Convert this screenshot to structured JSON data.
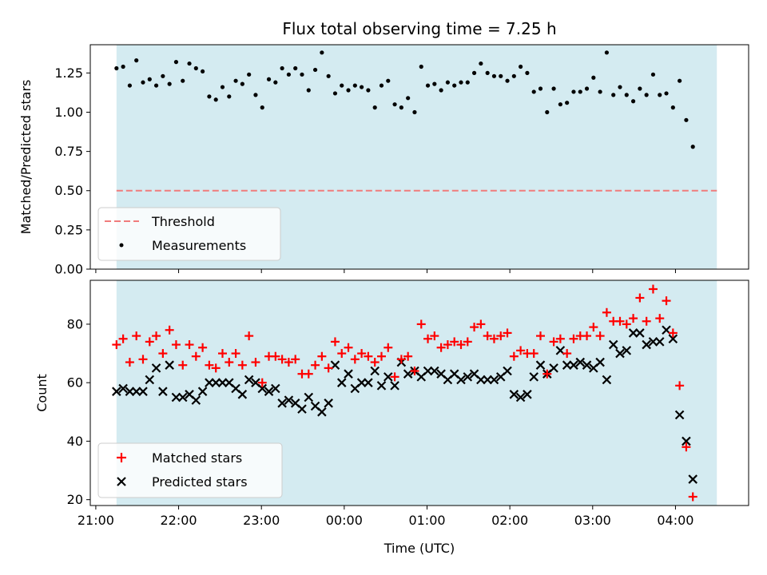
{
  "chart_data": [
    {
      "type": "scatter",
      "title": "Flux total observing time = 7.25 h",
      "xlabel": "",
      "ylabel": "Matched/Predicted stars",
      "xlim": [
        "20:56",
        "04:53"
      ],
      "ylim": [
        0.0,
        1.43
      ],
      "yticks": [
        "0.00",
        "0.25",
        "0.50",
        "0.75",
        "1.00",
        "1.25"
      ],
      "grid": false,
      "legend_position": "lower-left",
      "observing_window": [
        "21:15",
        "04:30"
      ],
      "colors": {
        "window": "#d4ebf1",
        "threshold": "#f07c7c",
        "measurements": "#000000"
      },
      "threshold": {
        "name": "Threshold",
        "value": 0.5
      },
      "series": [
        {
          "name": "Measurements",
          "marker": "dot",
          "start": "21:15",
          "step_minutes": 4.8,
          "values": [
            1.28,
            1.29,
            1.17,
            1.33,
            1.19,
            1.21,
            1.17,
            1.23,
            1.18,
            1.32,
            1.2,
            1.31,
            1.28,
            1.26,
            1.1,
            1.08,
            1.16,
            1.1,
            1.2,
            1.18,
            1.24,
            1.11,
            1.03,
            1.21,
            1.19,
            1.28,
            1.24,
            1.28,
            1.24,
            1.14,
            1.27,
            1.38,
            1.23,
            1.12,
            1.17,
            1.14,
            1.17,
            1.16,
            1.14,
            1.03,
            1.17,
            1.2,
            1.05,
            1.03,
            1.09,
            1.0,
            1.29,
            1.17,
            1.18,
            1.14,
            1.19,
            1.17,
            1.19,
            1.19,
            1.25,
            1.31,
            1.25,
            1.23,
            1.23,
            1.2,
            1.23,
            1.29,
            1.25,
            1.13,
            1.15,
            1.0,
            1.15,
            1.05,
            1.06,
            1.13,
            1.13,
            1.15,
            1.22,
            1.13,
            1.38,
            1.11,
            1.16,
            1.11,
            1.07,
            1.15,
            1.11,
            1.24,
            1.11,
            1.12,
            1.03,
            1.2,
            0.95,
            0.78
          ]
        }
      ]
    },
    {
      "type": "scatter",
      "xlabel": "Time (UTC)",
      "ylabel": "Count",
      "xlim": [
        "20:56",
        "04:53"
      ],
      "ylim": [
        18,
        95
      ],
      "xticks": [
        "21:00",
        "22:00",
        "23:00",
        "00:00",
        "01:00",
        "02:00",
        "03:00",
        "04:00"
      ],
      "yticks": [
        "20",
        "40",
        "60",
        "80"
      ],
      "grid": false,
      "legend_position": "lower-left",
      "observing_window": [
        "21:15",
        "04:30"
      ],
      "colors": {
        "window": "#d4ebf1",
        "matched": "#ff0000",
        "predicted": "#000000"
      },
      "series": [
        {
          "name": "Matched stars",
          "marker": "plus",
          "start": "21:15",
          "step_minutes": 4.8,
          "values": [
            73,
            75,
            67,
            76,
            68,
            74,
            76,
            70,
            78,
            73,
            66,
            73,
            69,
            72,
            66,
            65,
            70,
            67,
            70,
            66,
            76,
            67,
            60,
            69,
            69,
            68,
            67,
            68,
            63,
            63,
            66,
            69,
            65,
            74,
            70,
            72,
            68,
            70,
            69,
            67,
            69,
            72,
            62,
            68,
            69,
            64,
            80,
            75,
            76,
            72,
            73,
            74,
            73,
            74,
            79,
            80,
            76,
            75,
            76,
            77,
            69,
            71,
            70,
            70,
            76,
            63,
            74,
            75,
            70,
            75,
            76,
            76,
            79,
            76,
            84,
            81,
            81,
            80,
            82,
            89,
            81,
            92,
            82,
            88,
            77,
            59,
            38,
            21
          ]
        },
        {
          "name": "Predicted stars",
          "marker": "x",
          "start": "21:15",
          "step_minutes": 4.8,
          "values": [
            57,
            58,
            57,
            57,
            57,
            61,
            65,
            57,
            66,
            55,
            55,
            56,
            54,
            57,
            60,
            60,
            60,
            60,
            58,
            56,
            61,
            60,
            58,
            57,
            58,
            53,
            54,
            53,
            51,
            55,
            52,
            50,
            53,
            66,
            60,
            63,
            58,
            60,
            60,
            64,
            59,
            62,
            59,
            67,
            63,
            64,
            62,
            64,
            64,
            63,
            61,
            63,
            61,
            62,
            63,
            61,
            61,
            61,
            62,
            64,
            56,
            55,
            56,
            62,
            66,
            63,
            65,
            71,
            66,
            66,
            67,
            66,
            65,
            67,
            61,
            73,
            70,
            71,
            77,
            77,
            73,
            74,
            74,
            78,
            75,
            49,
            40,
            27
          ]
        }
      ]
    }
  ]
}
